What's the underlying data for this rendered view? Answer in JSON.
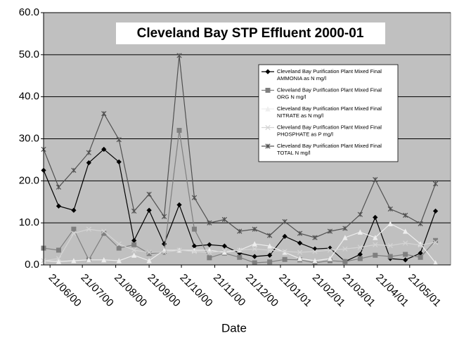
{
  "chart_data": {
    "type": "line",
    "title": "Cleveland Bay STP Effluent 2000-01",
    "x_label": "Date",
    "x": [
      "15/06/00",
      "29/06/00",
      "13/07/00",
      "27/07/00",
      "10/08/00",
      "24/08/00",
      "07/09/00",
      "21/09/00",
      "05/10/00",
      "19/10/00",
      "02/11/00",
      "16/11/00",
      "30/11/00",
      "14/12/00",
      "28/12/00",
      "11/01/01",
      "25/01/01",
      "08/02/01",
      "22/02/01",
      "08/03/01",
      "22/03/01",
      "05/04/01",
      "19/04/01",
      "03/05/01",
      "17/05/01",
      "31/05/01",
      "14/06/01"
    ],
    "xlim": [
      "15/06/00",
      "28/06/01"
    ],
    "xticks": [
      "21/06/00",
      "21/07/00",
      "21/08/00",
      "21/09/00",
      "21/10/00",
      "21/11/00",
      "21/12/00",
      "21/01/01",
      "21/02/01",
      "21/03/01",
      "21/04/01",
      "21/05/01"
    ],
    "ylim": [
      0,
      60
    ],
    "yticks": [
      {
        "value": 0,
        "label": "0.0"
      },
      {
        "value": 10,
        "label": "10.0"
      },
      {
        "value": 20,
        "label": "20.0"
      },
      {
        "value": 30,
        "label": "30.0"
      },
      {
        "value": 40,
        "label": "40.0"
      },
      {
        "value": 50,
        "label": "50.0"
      },
      {
        "value": 60,
        "label": "60.0"
      }
    ],
    "grid": true,
    "legend": "upper right",
    "series": [
      {
        "name": "Cleveland Bay Purification Plant Mixed Final\nAMMONIA as N mg/l",
        "color": "#000000",
        "marker": "diamond",
        "values": [
          22.5,
          14,
          13,
          24.3,
          27.5,
          24.5,
          5.8,
          13,
          5,
          14.3,
          4.5,
          4.8,
          4.5,
          2.8,
          2,
          2.3,
          6.8,
          5.2,
          3.8,
          4,
          0.8,
          2.5,
          11.3,
          1.5,
          1.2,
          2.8,
          12.8
        ]
      },
      {
        "name": "Cleveland Bay Purification Plant Mixed Final\nORG N mg/l",
        "color": "#7f7f7f",
        "marker": "square",
        "values": [
          4,
          3.5,
          8.5,
          1.2,
          7.5,
          4,
          4.8,
          2.7,
          3,
          32,
          8.5,
          1.7,
          2.8,
          1.8,
          0.5,
          0.7,
          1.3,
          1.2,
          0.5,
          1,
          0.8,
          1.5,
          2.3,
          2,
          2.5,
          1.8,
          5.8
        ]
      },
      {
        "name": "Cleveland Bay Purification Plant Mixed Final\nNITRATE as N mg/l",
        "color": "#eeeeee",
        "marker": "triangle",
        "values": [
          1,
          0.8,
          1,
          1.2,
          1.2,
          1,
          2.3,
          1,
          3.5,
          3.5,
          3.5,
          3.5,
          3,
          3.5,
          5,
          4.5,
          3,
          1.5,
          1,
          1.5,
          6.5,
          7.8,
          6.5,
          9.8,
          8,
          5,
          0.5
        ]
      },
      {
        "name": "Cleveland Bay Purification Plant Mixed Final\nPHOSPHATE as P mg/l",
        "color": "#d4d4d4",
        "marker": "cross",
        "values": [
          1,
          1.5,
          7.5,
          8.5,
          8,
          5,
          3.5,
          3,
          3,
          3.5,
          3.2,
          3,
          3.3,
          3.5,
          3.8,
          3.5,
          3.2,
          3,
          3.2,
          3.5,
          3.8,
          4.2,
          4.8,
          4.6,
          5.2,
          4.7,
          5.4
        ]
      },
      {
        "name": "Cleveland Bay Purification Plant Mixed Final\nTOTAL N mg/l",
        "color": "#505050",
        "marker": "star",
        "values": [
          27.5,
          18.5,
          22.5,
          26.7,
          36,
          29.8,
          12.8,
          16.8,
          11.5,
          49.8,
          16,
          10,
          10.8,
          8,
          8.5,
          7,
          10.3,
          7.5,
          6.5,
          8,
          8.7,
          12,
          20.3,
          13.3,
          11.8,
          9.8,
          19.3
        ]
      }
    ]
  }
}
